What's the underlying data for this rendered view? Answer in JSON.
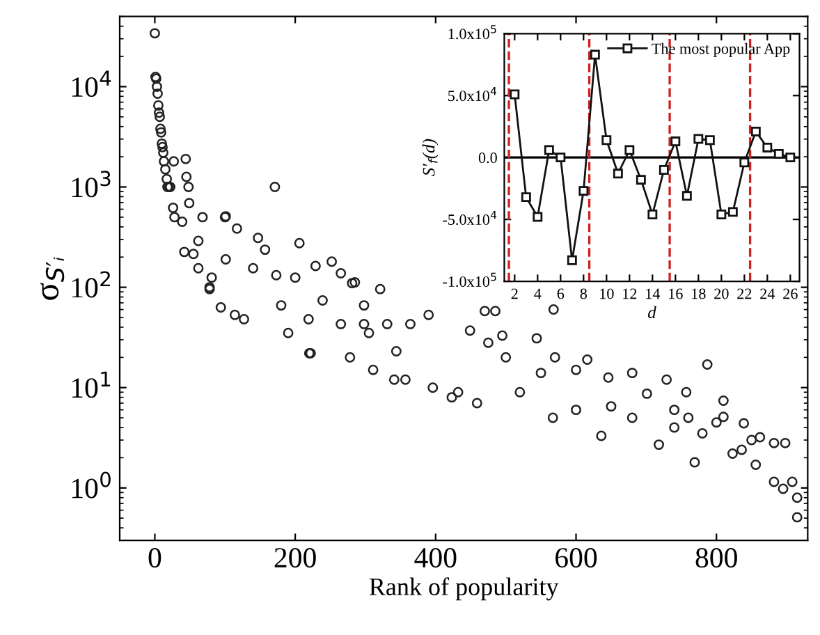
{
  "chart_data": [
    {
      "type": "scatter",
      "xlabel": "Rank of popularity",
      "ylabel": "σ$_{S′ᵢ}$",
      "log": "y",
      "marker": "circle",
      "grid": false,
      "legend": false,
      "xlim": [
        -50,
        930
      ],
      "xticks": [
        0,
        200,
        400,
        600,
        800
      ],
      "ylim": [
        0.3,
        50000
      ],
      "yticks": [
        {
          "value": 1,
          "label": "10$^{0}$"
        },
        {
          "value": 10,
          "label": "10$^{1}$"
        },
        {
          "value": 100,
          "label": "10$^{2}$"
        },
        {
          "value": 1000,
          "label": "10$^{3}$"
        },
        {
          "value": 10000,
          "label": "10$^{4}$"
        }
      ],
      "series": [
        {
          "color": "#222222",
          "x": [
            0,
            1,
            2,
            3,
            4,
            5,
            6,
            7,
            8,
            9,
            10,
            11,
            12,
            13,
            15,
            17,
            18,
            20,
            22,
            26,
            27,
            28,
            39,
            42,
            44,
            45,
            48,
            49,
            55,
            62,
            62,
            68,
            78,
            78,
            81,
            94,
            100,
            101,
            101,
            114,
            117,
            127,
            140,
            147,
            157,
            171,
            173,
            180,
            190,
            200,
            206,
            219,
            220,
            222,
            229,
            239,
            252,
            265,
            265,
            278,
            281,
            285,
            298,
            298,
            305,
            311,
            321,
            331,
            341,
            344,
            357,
            364,
            390,
            396,
            423,
            432,
            449,
            459,
            470,
            475,
            485,
            495,
            500,
            520,
            544,
            550,
            567,
            568,
            570,
            600,
            600,
            616,
            636,
            646,
            650,
            680,
            680,
            701,
            718,
            729,
            740,
            740,
            757,
            760,
            769,
            780,
            787,
            800,
            810,
            810,
            823,
            836,
            839,
            850,
            856,
            862,
            882,
            882,
            895,
            898,
            908,
            915,
            915
          ],
          "values": [
            34000,
            12500,
            12000,
            10000,
            8500,
            6500,
            5500,
            5000,
            3800,
            3500,
            2700,
            2500,
            2200,
            1800,
            1500,
            1200,
            1000,
            1000,
            1000,
            620,
            1800,
            500,
            450,
            225,
            1900,
            1260,
            1000,
            690,
            215,
            290,
            155,
            500,
            100,
            96,
            125,
            63,
            500,
            510,
            190,
            53,
            385,
            48,
            155,
            310,
            237,
            1000,
            132,
            66,
            35,
            125,
            275,
            48,
            22,
            22,
            163,
            74,
            180,
            138,
            43,
            20,
            110,
            112,
            43,
            66,
            35,
            15,
            96,
            43,
            12,
            23,
            12,
            43,
            53,
            10,
            8,
            9,
            37,
            7,
            58,
            28,
            58,
            33,
            20,
            9,
            31,
            14,
            5,
            60,
            20,
            6,
            15,
            19,
            3.3,
            12.6,
            6.5,
            14,
            5,
            8.7,
            2.7,
            12,
            6,
            4,
            9,
            5,
            1.8,
            3.5,
            17,
            4.5,
            7.4,
            5.1,
            2.2,
            2.4,
            4.4,
            3,
            1.7,
            3.2,
            2.8,
            1.15,
            0.98,
            2.8,
            1.15,
            0.8,
            0.51
          ]
        }
      ]
    },
    {
      "type": "line",
      "xlabel": "d",
      "ylabel": "S′$_{f}$(d)",
      "marker": "square",
      "line_style": "solid",
      "grid": false,
      "legend": "top right",
      "xlim": [
        1.1,
        26.8
      ],
      "xticks": [
        2,
        4,
        6,
        8,
        10,
        12,
        14,
        16,
        18,
        20,
        22,
        24,
        26
      ],
      "ylim": [
        -100000,
        100000
      ],
      "yticks": [
        {
          "value": -100000,
          "label": "-1.0x10$^{5}$"
        },
        {
          "value": -50000,
          "label": "-5.0x10$^{4}$"
        },
        {
          "value": 0,
          "label": "0.0"
        },
        {
          "value": 50000,
          "label": "5.0x10$^{4}$"
        },
        {
          "value": 100000,
          "label": "1.0x10$^{5}$"
        }
      ],
      "ref_lines": [
        {
          "axis": "y",
          "value": 0,
          "color": "#000000",
          "line_style": "solid"
        },
        {
          "axis": "x",
          "value": 1.5,
          "color": "#cc2222",
          "line_style": "dashed"
        },
        {
          "axis": "x",
          "value": 8.5,
          "color": "#cc2222",
          "line_style": "dashed"
        },
        {
          "axis": "x",
          "value": 15.5,
          "color": "#cc2222",
          "line_style": "dashed"
        },
        {
          "axis": "x",
          "value": 22.5,
          "color": "#cc2222",
          "line_style": "dashed"
        }
      ],
      "series": [
        {
          "name": "The most popular App",
          "color": "#111111",
          "x": [
            2,
            3,
            4,
            5,
            6,
            7,
            8,
            9,
            10,
            11,
            12,
            13,
            14,
            15,
            16,
            17,
            18,
            19,
            20,
            21,
            22,
            23,
            24,
            25,
            26
          ],
          "values": [
            51000,
            -32000,
            -48000,
            6000,
            0,
            -83000,
            -27000,
            83000,
            14000,
            -13000,
            6000,
            -18000,
            -46000,
            -10000,
            13000,
            -31000,
            15000,
            14000,
            -46000,
            -44000,
            -4000,
            21000,
            8000,
            3000,
            0
          ]
        }
      ]
    }
  ]
}
